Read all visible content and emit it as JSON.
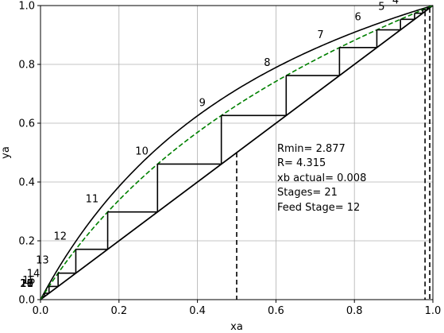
{
  "chart_data": {
    "type": "line",
    "title": "",
    "xlabel": "xa",
    "ylabel": "ya",
    "xlim": [
      0,
      1
    ],
    "ylim": [
      0,
      1
    ],
    "x_ticks": [
      "0.0",
      "0.2",
      "0.4",
      "0.6",
      "0.8",
      "1.0"
    ],
    "y_ticks": [
      "0.0",
      "0.2",
      "0.4",
      "0.6",
      "0.8",
      "1.0"
    ],
    "grid": true,
    "legend": "none",
    "relative_volatility": 2.5,
    "series": [
      {
        "role": "equilibrium-curve",
        "style": "solid",
        "color": "#000000"
      },
      {
        "role": "diagonal",
        "style": "solid",
        "color": "#000000"
      },
      {
        "role": "pseudo-equilibrium",
        "style": "dashed",
        "color": "#008000"
      }
    ],
    "operating_lines": {
      "feed_x": 0.5,
      "feed_y": 0.5,
      "q_line_end_y": 0.5,
      "rectifying": [
        [
          0.5,
          0.5
        ],
        [
          0.992,
          0.992
        ]
      ],
      "stripping": [
        [
          0.008,
          0.008
        ],
        [
          0.5,
          0.5
        ]
      ]
    },
    "vertical_markers": [
      {
        "x": 0.5,
        "style": "dashed"
      },
      {
        "x": 0.992,
        "style": "dashed"
      },
      {
        "x": 0.98,
        "style": "dashed"
      }
    ],
    "stage_labels": [
      "21",
      "20",
      "19",
      "18",
      "17",
      "16",
      "15",
      "14",
      "13",
      "12",
      "11",
      "10",
      "9",
      "8",
      "7",
      "6",
      "5",
      "4"
    ],
    "annotations": [
      "Rmin= 2.877",
      "R= 4.315",
      "xb actual= 0.008",
      "Stages= 21",
      "Feed Stage= 12"
    ]
  }
}
